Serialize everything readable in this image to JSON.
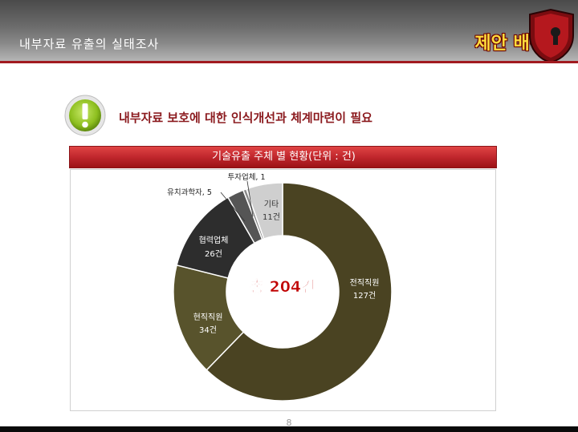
{
  "header": {
    "title": "내부자료 유출의 실태조사",
    "badge": "제안 배경"
  },
  "subtitle": "내부자료 보호에 대한 인식개선과 체계마련이 필요",
  "chart_title_bar": "기술유출 주체 별 현황(단위 : 건)",
  "center_label": "총 204건",
  "page_number": "8",
  "colors": {
    "accent": "#a11a1f",
    "badge": "#ffdc3c",
    "total_text": "#c00000"
  },
  "chart_data": {
    "type": "pie",
    "donut": true,
    "title": "",
    "total": 204,
    "slices": [
      {
        "name": "전직직원",
        "value": 127,
        "label": "127건",
        "color": "#4a4322"
      },
      {
        "name": "현직직원",
        "value": 34,
        "label": "34건",
        "color": "#58532c"
      },
      {
        "name": "협력업체",
        "value": 26,
        "label": "26건",
        "color": "#2d2d2d"
      },
      {
        "name": "유치과학자",
        "value": 5,
        "label": "유치과학자, 5",
        "color": "#555555"
      },
      {
        "name": "투자업체",
        "value": 1,
        "label": "투자업체, 1",
        "color": "#8a8a8a"
      },
      {
        "name": "기타",
        "value": 11,
        "label": "11건",
        "color": "#cfcfcf"
      }
    ]
  }
}
